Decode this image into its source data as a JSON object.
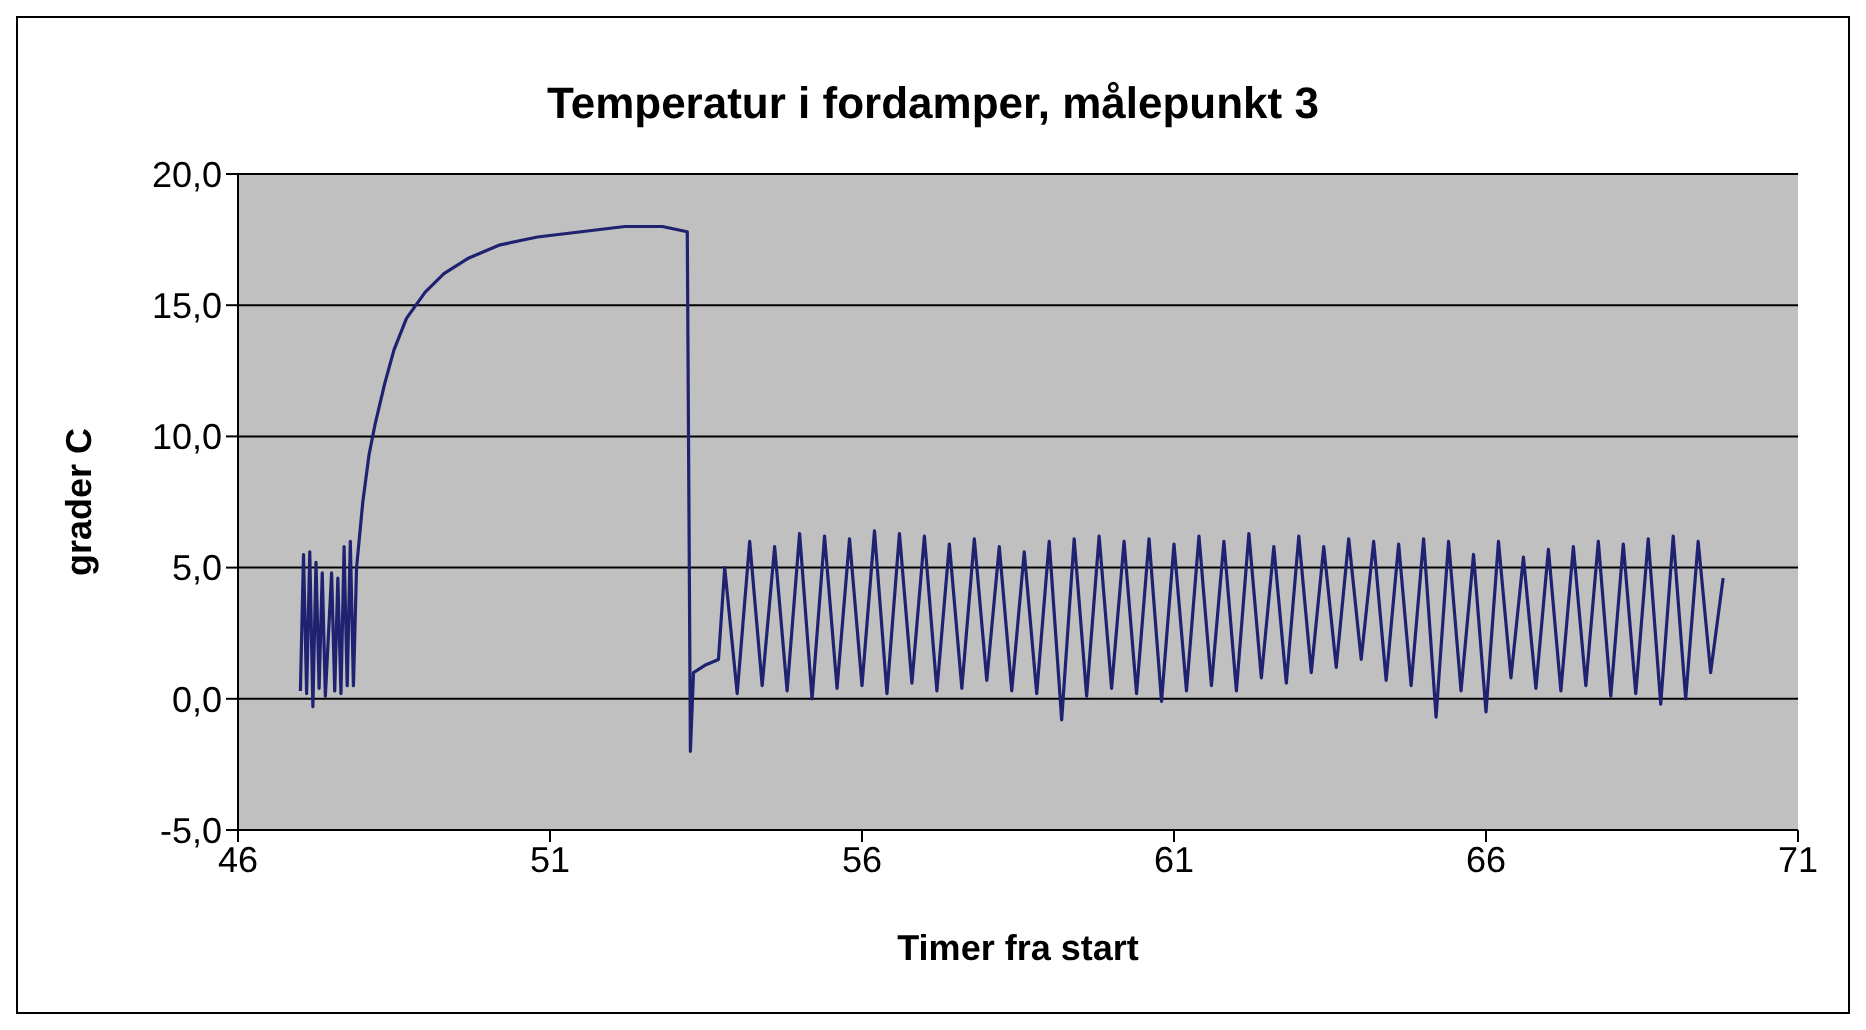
{
  "chart_data": {
    "type": "line",
    "title": "Temperatur i fordamper, målepunkt 3",
    "xlabel": "Timer fra start",
    "ylabel": "grader C",
    "x": [
      47.0,
      47.05,
      47.1,
      47.15,
      47.2,
      47.25,
      47.3,
      47.35,
      47.4,
      47.5,
      47.55,
      47.6,
      47.65,
      47.7,
      47.75,
      47.8,
      47.85,
      47.9,
      48.0,
      48.1,
      48.2,
      48.35,
      48.5,
      48.7,
      49.0,
      49.3,
      49.7,
      50.2,
      50.8,
      51.5,
      52.2,
      52.8,
      53.2,
      53.25,
      53.3,
      53.5,
      53.7,
      53.8,
      54.0,
      54.2,
      54.4,
      54.6,
      54.8,
      55.0,
      55.2,
      55.4,
      55.6,
      55.8,
      56.0,
      56.2,
      56.4,
      56.6,
      56.8,
      57.0,
      57.2,
      57.4,
      57.6,
      57.8,
      58.0,
      58.2,
      58.4,
      58.6,
      58.8,
      59.0,
      59.2,
      59.4,
      59.6,
      59.8,
      60.0,
      60.2,
      60.4,
      60.6,
      60.8,
      61.0,
      61.2,
      61.4,
      61.6,
      61.8,
      62.0,
      62.2,
      62.4,
      62.6,
      62.8,
      63.0,
      63.2,
      63.4,
      63.6,
      63.8,
      64.0,
      64.2,
      64.4,
      64.6,
      64.8,
      65.0,
      65.2,
      65.4,
      65.6,
      65.8,
      66.0,
      66.2,
      66.4,
      66.6,
      66.8,
      67.0,
      67.2,
      67.4,
      67.6,
      67.8,
      68.0,
      68.2,
      68.4,
      68.6,
      68.8,
      69.0,
      69.2,
      69.4,
      69.6,
      69.8
    ],
    "series": [
      {
        "color": "#1f2270",
        "values": [
          0.3,
          5.5,
          0.2,
          5.6,
          -0.3,
          5.2,
          0.4,
          4.8,
          0.1,
          4.8,
          0.3,
          4.6,
          0.2,
          5.8,
          0.5,
          6.0,
          0.5,
          5.0,
          7.5,
          9.3,
          10.5,
          12.0,
          13.3,
          14.5,
          15.5,
          16.2,
          16.8,
          17.3,
          17.6,
          17.8,
          18.0,
          18.0,
          17.8,
          -2.0,
          1.0,
          1.3,
          1.5,
          5.0,
          0.2,
          6.0,
          0.5,
          5.8,
          0.3,
          6.3,
          0.0,
          6.2,
          0.4,
          6.1,
          0.5,
          6.4,
          0.2,
          6.3,
          0.6,
          6.2,
          0.3,
          5.9,
          0.4,
          6.1,
          0.7,
          5.8,
          0.3,
          5.6,
          0.2,
          6.0,
          -0.8,
          6.1,
          0.1,
          6.2,
          0.4,
          6.0,
          0.2,
          6.1,
          -0.1,
          5.9,
          0.3,
          6.2,
          0.5,
          6.0,
          0.3,
          6.3,
          0.8,
          5.8,
          0.6,
          6.2,
          1.0,
          5.8,
          1.2,
          6.1,
          1.5,
          6.0,
          0.7,
          5.9,
          0.5,
          6.1,
          -0.7,
          6.0,
          0.3,
          5.5,
          -0.5,
          6.0,
          0.8,
          5.4,
          0.4,
          5.7,
          0.3,
          5.8,
          0.5,
          6.0,
          0.1,
          5.9,
          0.2,
          6.1,
          -0.2,
          6.2,
          0.0,
          6.0,
          1.0,
          4.6
        ]
      }
    ],
    "xlim": [
      46,
      71
    ],
    "xticks": [
      46,
      51,
      56,
      61,
      66,
      71
    ],
    "ylim": [
      -5,
      20
    ],
    "yticks": [
      {
        "value": -5,
        "label": "-5,0"
      },
      {
        "value": 0,
        "label": "0,0"
      },
      {
        "value": 5,
        "label": "5,0"
      },
      {
        "value": 10,
        "label": "10,0"
      },
      {
        "value": 15,
        "label": "15,0"
      },
      {
        "value": 20,
        "label": "20,0"
      }
    ],
    "grid": "y",
    "legend": false,
    "marker": "none",
    "line_style": "solid"
  }
}
